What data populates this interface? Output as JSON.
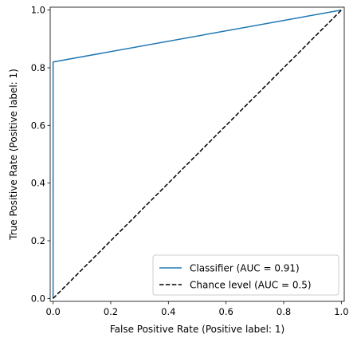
{
  "chart_data": {
    "type": "line",
    "title": "",
    "xlabel": "False Positive Rate (Positive label: 1)",
    "ylabel": "True Positive Rate (Positive label: 1)",
    "xlim": [
      0.0,
      1.0
    ],
    "ylim": [
      0.0,
      1.0
    ],
    "x_ticks": [
      "0.0",
      "0.2",
      "0.4",
      "0.6",
      "0.8",
      "1.0"
    ],
    "y_ticks": [
      "0.0",
      "0.2",
      "0.4",
      "0.6",
      "0.8",
      "1.0"
    ],
    "grid": false,
    "legend_position": "lower-right",
    "series": [
      {
        "name": "Classifier (AUC = 0.91)",
        "style": "solid",
        "color": "#1f77b4",
        "x": [
          0.0,
          0.0,
          1.0
        ],
        "y": [
          0.0,
          0.82,
          1.0
        ]
      },
      {
        "name": "Chance level (AUC = 0.5)",
        "style": "dashed",
        "color": "#000000",
        "x": [
          0.0,
          1.0
        ],
        "y": [
          0.0,
          1.0
        ]
      }
    ]
  }
}
